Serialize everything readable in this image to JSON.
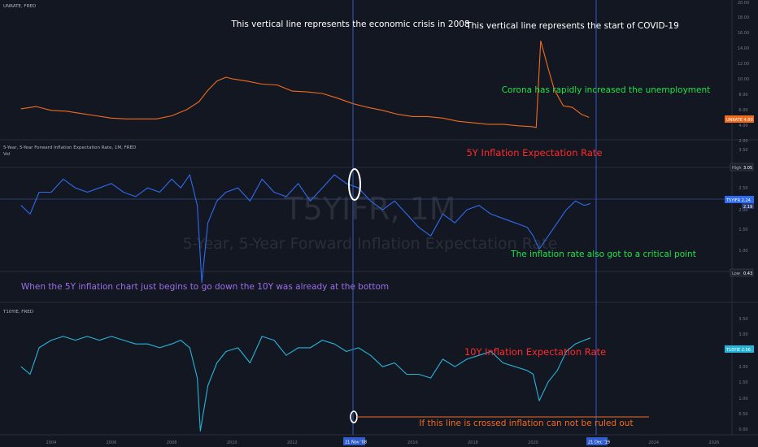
{
  "panes": {
    "unrate": {
      "title": "UNRATE, FRED",
      "axis_labels": [
        "20.00",
        "18.00",
        "16.00",
        "14.00",
        "12.00",
        "10.00",
        "8.00",
        "6.00",
        "4.00",
        "2.00"
      ],
      "badge": "UNRATE  4.80",
      "color": "#f26b1d"
    },
    "t5yifr": {
      "title": "5-Year, 5-Year Forward Inflation Expectation Rate, 1M, FRED",
      "subtitle": "Vol",
      "axis_labels": [
        "3.50",
        "3.00",
        "2.50",
        "2.00",
        "1.50",
        "1.00",
        "0.50"
      ],
      "badge": "T5YIFR  2.24",
      "badge_sub": "2.19",
      "high_label": "High",
      "high_value": "3.05",
      "low_label": "Low",
      "low_value": "0.43",
      "color": "#2f6bf0",
      "watermark_symbol": "T5YIFR, 1M",
      "watermark_name": "5-Year, 5-Year Forward Inflation Expectation Rate"
    },
    "t10yie": {
      "title": "T10YIE, FRED",
      "axis_labels": [
        "3.50",
        "3.00",
        "2.50",
        "2.00",
        "1.50",
        "1.00",
        "0.50",
        "0.00"
      ],
      "badge": "T10YIE  2.56",
      "color": "#26b5d9"
    }
  },
  "annotations": {
    "crisis_2008": "This vertical line represents the economic crisis in 2008",
    "covid": "This vertical line represents the start of COVID-19",
    "corona_unemployment": "Corona has rapidly increased the unemployment",
    "label_5y": "5Y Inflation Expectation Rate",
    "critical_point": "The inflation rate also got to a critical point",
    "five_vs_ten": "When the 5Y inflation chart just begins to go down the 10Y was already at the bottom",
    "label_10y": "10Y Inflation Expectation Rate",
    "crossed_line": "If this line is crossed inflation can not be ruled out"
  },
  "time_axis": {
    "labels": [
      "2004",
      "2006",
      "2008",
      "2010",
      "2012",
      "2014",
      "2016",
      "2018",
      "2020",
      "2022",
      "2024",
      "2026"
    ],
    "highlight_1": "21 Nov '08",
    "highlight_2": "21 Dec '19"
  },
  "colors": {
    "background": "#131722",
    "white_text": "#ffffff",
    "green_text": "#22e04a",
    "red_text": "#ff2a2a",
    "purple_text": "#9b6fe6",
    "orange_text": "#f26b1d",
    "vline": "#2f5cc8"
  },
  "chart_data": [
    {
      "type": "line",
      "title": "UNRATE, FRED",
      "ylim": [
        2,
        20
      ],
      "x_range": [
        2002.3,
        2026.6
      ],
      "series": [
        {
          "name": "UNRATE",
          "x": [
            2003.0,
            2003.5,
            2004.0,
            2004.5,
            2005.0,
            2005.5,
            2006.0,
            2006.5,
            2007.0,
            2007.5,
            2008.0,
            2008.5,
            2008.9,
            2009.2,
            2009.5,
            2009.8,
            2010.0,
            2010.5,
            2011.0,
            2011.5,
            2012.0,
            2012.5,
            2013.0,
            2013.5,
            2014.0,
            2014.5,
            2015.0,
            2015.5,
            2016.0,
            2016.5,
            2017.0,
            2017.5,
            2018.0,
            2018.5,
            2019.0,
            2019.5,
            2019.95,
            2020.1,
            2020.25,
            2020.35,
            2020.5,
            2020.7,
            2021.0,
            2021.3,
            2021.6,
            2021.85
          ],
          "values": [
            5.9,
            6.2,
            5.7,
            5.6,
            5.3,
            5.0,
            4.7,
            4.6,
            4.6,
            4.6,
            5.0,
            5.8,
            6.8,
            8.3,
            9.5,
            10.0,
            9.8,
            9.5,
            9.1,
            9.0,
            8.2,
            8.1,
            7.9,
            7.3,
            6.6,
            6.1,
            5.7,
            5.2,
            4.9,
            4.9,
            4.7,
            4.3,
            4.1,
            3.9,
            3.9,
            3.7,
            3.6,
            3.5,
            14.7,
            13.3,
            11.1,
            8.4,
            6.3,
            6.1,
            5.2,
            4.8
          ]
        }
      ]
    },
    {
      "type": "line",
      "title": "5-Year, 5-Year Forward Inflation Expectation Rate, 1M, FRED",
      "ylim": [
        0.0,
        3.7
      ],
      "x_range": [
        2002.3,
        2026.6
      ],
      "series": [
        {
          "name": "T5YIFR",
          "x": [
            2003.0,
            2003.3,
            2003.6,
            2004.0,
            2004.4,
            2004.8,
            2005.2,
            2005.6,
            2006.0,
            2006.4,
            2006.8,
            2007.2,
            2007.6,
            2008.0,
            2008.3,
            2008.6,
            2008.85,
            2009.0,
            2009.2,
            2009.5,
            2009.8,
            2010.2,
            2010.6,
            2011.0,
            2011.4,
            2011.8,
            2012.2,
            2012.6,
            2013.0,
            2013.4,
            2013.8,
            2014.2,
            2014.6,
            2015.0,
            2015.4,
            2015.8,
            2016.2,
            2016.6,
            2017.0,
            2017.4,
            2017.8,
            2018.2,
            2018.6,
            2019.0,
            2019.4,
            2019.8,
            2020.0,
            2020.2,
            2020.5,
            2020.8,
            2021.1,
            2021.4,
            2021.7,
            2021.9
          ],
          "values": [
            2.2,
            2.0,
            2.5,
            2.5,
            2.8,
            2.6,
            2.5,
            2.6,
            2.7,
            2.5,
            2.4,
            2.6,
            2.5,
            2.8,
            2.6,
            2.9,
            2.2,
            0.43,
            1.8,
            2.3,
            2.5,
            2.6,
            2.3,
            2.8,
            2.5,
            2.4,
            2.7,
            2.3,
            2.6,
            2.9,
            2.7,
            2.6,
            2.3,
            2.1,
            2.3,
            2.0,
            1.7,
            1.5,
            2.0,
            1.8,
            2.1,
            2.2,
            2.0,
            1.9,
            1.8,
            1.7,
            1.5,
            1.2,
            1.5,
            1.8,
            2.1,
            2.3,
            2.2,
            2.24
          ]
        }
      ]
    },
    {
      "type": "line",
      "title": "T10YIE, FRED",
      "ylim": [
        0.0,
        3.5
      ],
      "x_range": [
        2002.3,
        2026.6
      ],
      "series": [
        {
          "name": "T10YIE",
          "x": [
            2003.0,
            2003.3,
            2003.6,
            2004.0,
            2004.4,
            2004.8,
            2005.2,
            2005.6,
            2006.0,
            2006.4,
            2006.8,
            2007.2,
            2007.6,
            2008.0,
            2008.3,
            2008.6,
            2008.85,
            2008.95,
            2009.2,
            2009.5,
            2009.8,
            2010.2,
            2010.6,
            2011.0,
            2011.4,
            2011.8,
            2012.2,
            2012.6,
            2013.0,
            2013.4,
            2013.8,
            2014.2,
            2014.6,
            2015.0,
            2015.4,
            2015.8,
            2016.2,
            2016.6,
            2017.0,
            2017.4,
            2017.8,
            2018.2,
            2018.6,
            2019.0,
            2019.4,
            2019.8,
            2020.0,
            2020.2,
            2020.5,
            2020.8,
            2021.1,
            2021.4,
            2021.7,
            2021.9
          ],
          "values": [
            1.8,
            1.6,
            2.3,
            2.5,
            2.6,
            2.5,
            2.6,
            2.5,
            2.6,
            2.5,
            2.4,
            2.4,
            2.3,
            2.4,
            2.5,
            2.3,
            1.5,
            0.1,
            1.3,
            1.9,
            2.2,
            2.3,
            1.9,
            2.6,
            2.5,
            2.1,
            2.3,
            2.3,
            2.5,
            2.4,
            2.2,
            2.3,
            2.1,
            1.8,
            1.9,
            1.6,
            1.6,
            1.5,
            2.0,
            1.8,
            2.0,
            2.1,
            2.2,
            1.9,
            1.8,
            1.7,
            1.6,
            0.9,
            1.4,
            1.7,
            2.2,
            2.4,
            2.5,
            2.56
          ]
        }
      ]
    }
  ]
}
